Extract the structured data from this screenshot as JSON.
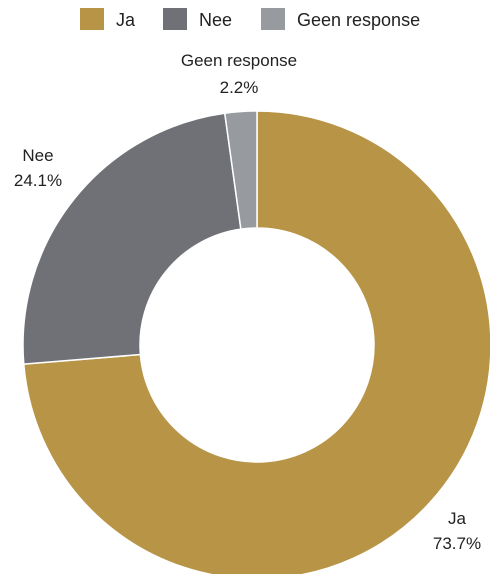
{
  "chart_data": {
    "type": "pie",
    "donut": true,
    "legend_position": "top",
    "slices": [
      {
        "label": "Ja",
        "value": 73.7,
        "display": "73.7%",
        "color": "#b89447"
      },
      {
        "label": "Nee",
        "value": 24.1,
        "display": "24.1%",
        "color": "#707177"
      },
      {
        "label": "Geen response",
        "value": 2.2,
        "display": "2.2%",
        "color": "#979ba0"
      }
    ]
  }
}
